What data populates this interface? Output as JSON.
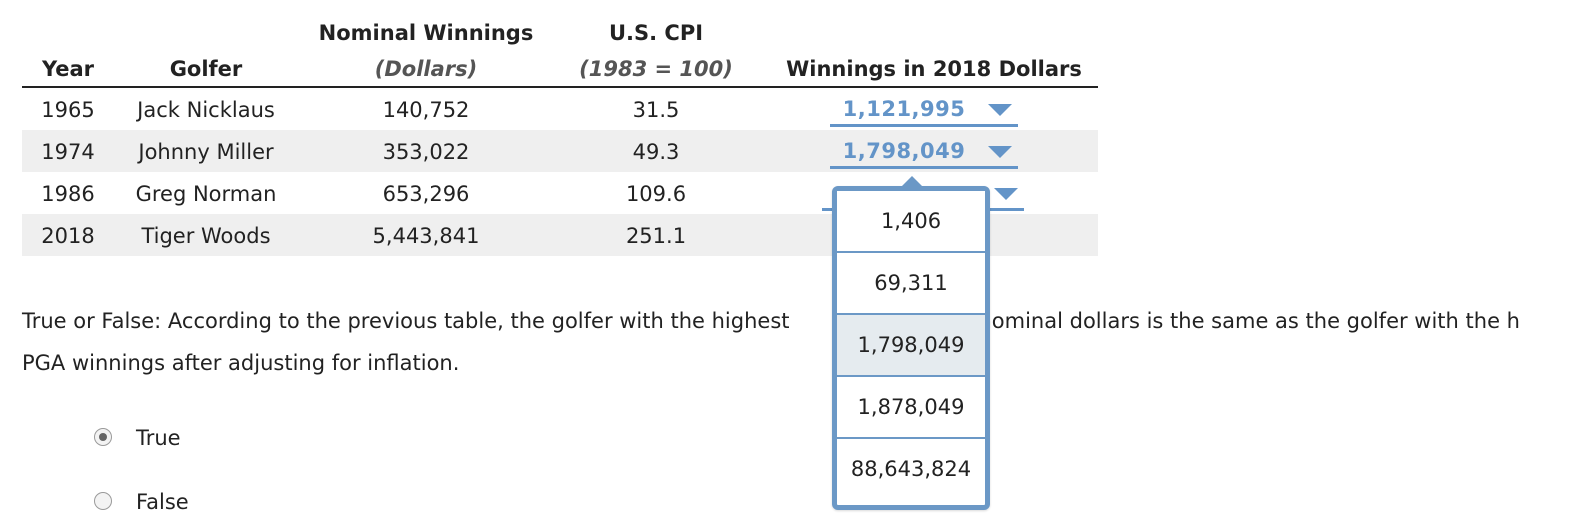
{
  "table": {
    "headers": {
      "year": "Year",
      "golfer": "Golfer",
      "nominal_title": "Nominal Winnings",
      "nominal_unit": "(Dollars)",
      "cpi_title": "U.S. CPI",
      "cpi_unit": "(1983 = 100)",
      "winnings_2018": "Winnings in 2018 Dollars"
    },
    "rows": [
      {
        "year": "1965",
        "golfer": "Jack Nicklaus",
        "nominal": "140,752",
        "cpi": "31.5",
        "winnings_2018": "1,121,995"
      },
      {
        "year": "1974",
        "golfer": "Johnny Miller",
        "nominal": "353,022",
        "cpi": "49.3",
        "winnings_2018": "1,798,049"
      },
      {
        "year": "1986",
        "golfer": "Greg Norman",
        "nominal": "653,296",
        "cpi": "109.6",
        "winnings_2018": ""
      },
      {
        "year": "2018",
        "golfer": "Tiger Woods",
        "nominal": "5,443,841",
        "cpi": "251.1",
        "winnings_2018": ""
      }
    ]
  },
  "dropdown": {
    "options": [
      "1,406",
      "69,311",
      "1,798,049",
      "1,878,049",
      "88,643,824"
    ],
    "highlighted": "1,798,049",
    "caret_color": "#6394c8"
  },
  "question": {
    "line1_left": "True or False: According to the previous table, the golfer with the highest",
    "line1_right": "n nominal dollars is the same as the golfer with the h",
    "line2": "PGA winnings after adjusting for inflation."
  },
  "answers": {
    "true_label": "True",
    "false_label": "False",
    "selected": "True"
  },
  "colors": {
    "accent": "#6394c8",
    "row_shade": "#efefef",
    "option_highlight": "#e5ebef"
  }
}
